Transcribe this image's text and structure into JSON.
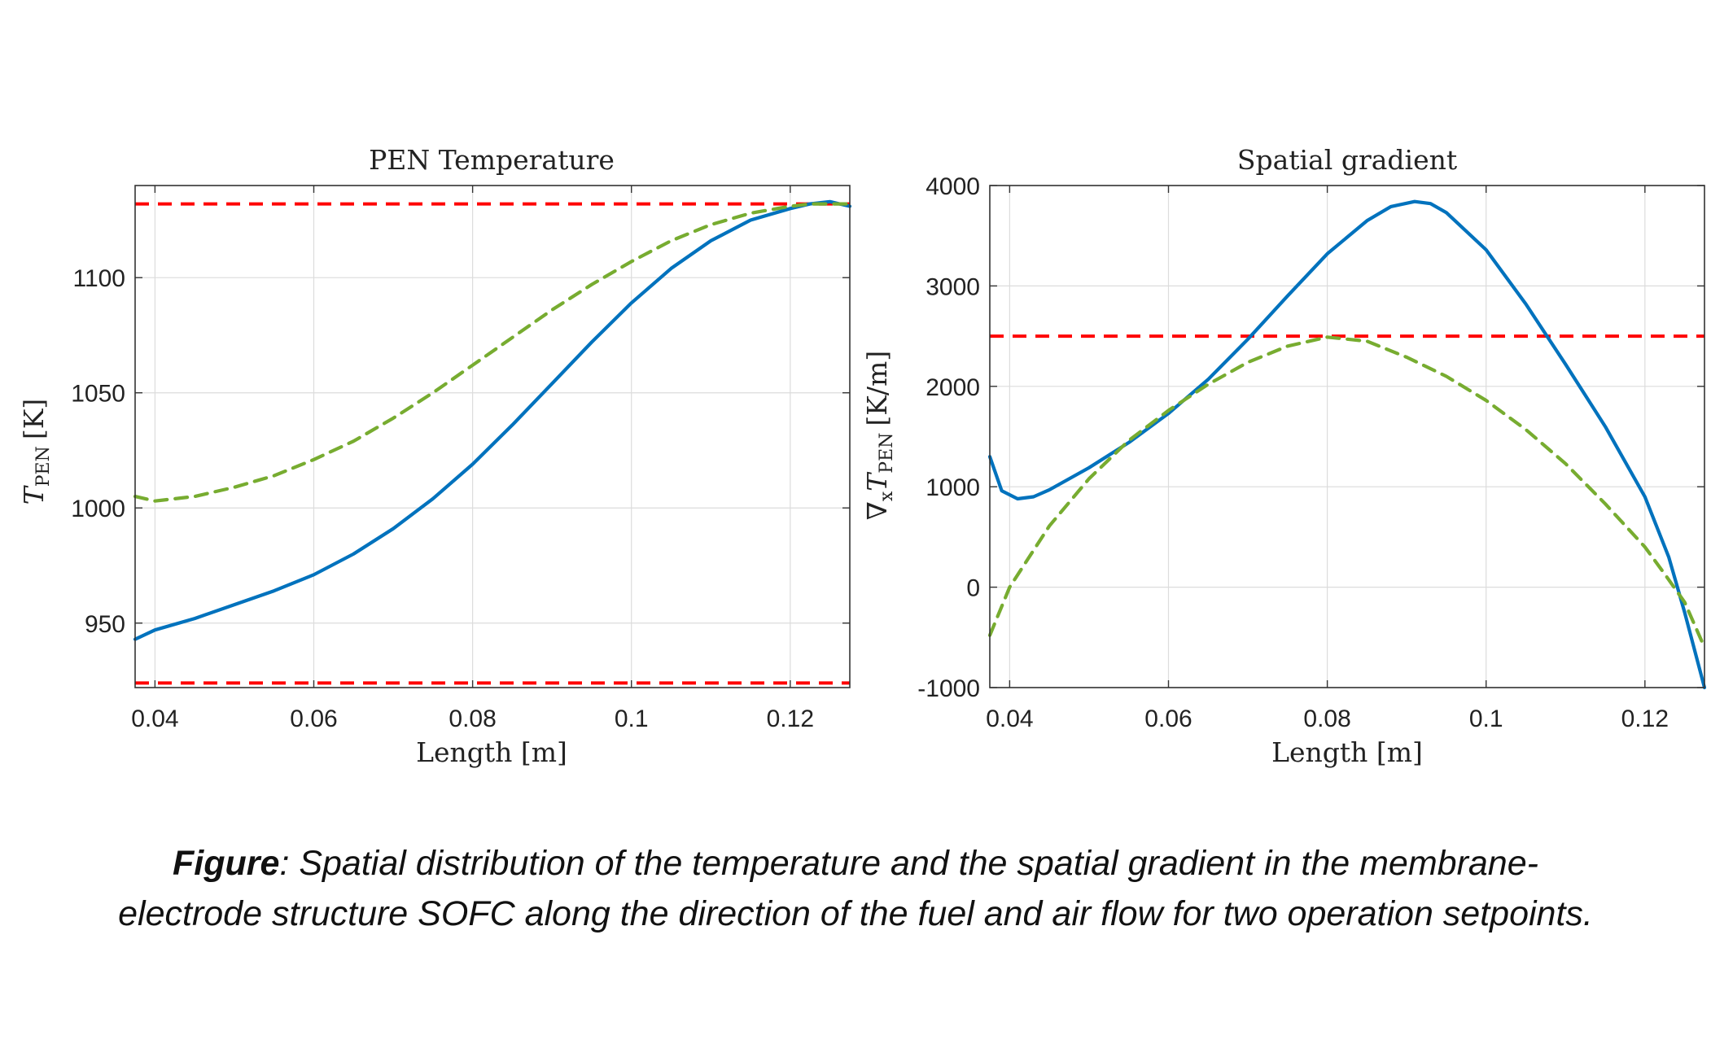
{
  "caption": {
    "lead": "Figure",
    "line1": ": Spatial distribution of the temperature and the spatial gradient in the membrane-",
    "line2": "electrode structure SOFC along the direction of the fuel and air flow for two operation setpoints."
  },
  "colors": {
    "blue": "#0072BD",
    "green": "#77AC30",
    "red": "#FF0000",
    "grid": "#dcdcdc",
    "axis": "#333333"
  },
  "chart_data": [
    {
      "type": "line",
      "title": "PEN Temperature",
      "xlabel": "Length [m]",
      "ylabel_main": "T",
      "ylabel_sub": "PEN",
      "ylabel_unit": "[K]",
      "xlim": [
        0.0375,
        0.1275
      ],
      "ylim": [
        922,
        1140
      ],
      "xticks": [
        0.04,
        0.06,
        0.08,
        0.1,
        0.12
      ],
      "xtick_labels": [
        "0.04",
        "0.06",
        "0.08",
        "0.1",
        "0.12"
      ],
      "yticks": [
        950,
        1000,
        1050,
        1100
      ],
      "ytick_labels": [
        "950",
        "1000",
        "1050",
        "1100"
      ],
      "grid": true,
      "hlines": [
        {
          "y": 1132,
          "color": "#FF0000",
          "style": "dashed"
        },
        {
          "y": 924,
          "color": "#FF0000",
          "style": "dashed"
        }
      ],
      "series": [
        {
          "color": "#0072BD",
          "style": "solid",
          "x": [
            0.0375,
            0.04,
            0.045,
            0.05,
            0.055,
            0.06,
            0.065,
            0.07,
            0.075,
            0.08,
            0.085,
            0.09,
            0.095,
            0.1,
            0.105,
            0.11,
            0.115,
            0.12,
            0.1225,
            0.125,
            0.1275
          ],
          "y": [
            943,
            947,
            952,
            958,
            964,
            971,
            980,
            991,
            1004,
            1019,
            1036,
            1054,
            1072,
            1089,
            1104,
            1116,
            1125,
            1130,
            1132,
            1133,
            1131
          ]
        },
        {
          "color": "#77AC30",
          "style": "dashed",
          "x": [
            0.0375,
            0.04,
            0.045,
            0.05,
            0.055,
            0.06,
            0.065,
            0.07,
            0.075,
            0.08,
            0.085,
            0.09,
            0.095,
            0.1,
            0.105,
            0.11,
            0.115,
            0.12,
            0.1225,
            0.125,
            0.1275
          ],
          "y": [
            1005,
            1003,
            1005,
            1009,
            1014,
            1021,
            1029,
            1039,
            1050,
            1062,
            1074,
            1086,
            1097,
            1107,
            1116,
            1123,
            1128,
            1131,
            1132,
            1132,
            1132
          ]
        }
      ]
    },
    {
      "type": "line",
      "title": "Spatial gradient",
      "xlabel": "Length [m]",
      "ylabel_prefix": "∇",
      "ylabel_prefix_sub": "x",
      "ylabel_main": "T",
      "ylabel_sub": "PEN",
      "ylabel_unit": "[K/m]",
      "xlim": [
        0.0375,
        0.1275
      ],
      "ylim": [
        -1000,
        4000
      ],
      "xticks": [
        0.04,
        0.06,
        0.08,
        0.1,
        0.12
      ],
      "xtick_labels": [
        "0.04",
        "0.06",
        "0.08",
        "0.1",
        "0.12"
      ],
      "yticks": [
        -1000,
        0,
        1000,
        2000,
        3000,
        4000
      ],
      "ytick_labels": [
        "-1000",
        "0",
        "1000",
        "2000",
        "3000",
        "4000"
      ],
      "grid": true,
      "hlines": [
        {
          "y": 2500,
          "color": "#FF0000",
          "style": "dashed"
        }
      ],
      "series": [
        {
          "color": "#0072BD",
          "style": "solid",
          "x": [
            0.0375,
            0.039,
            0.041,
            0.043,
            0.045,
            0.05,
            0.055,
            0.06,
            0.065,
            0.07,
            0.075,
            0.08,
            0.085,
            0.088,
            0.091,
            0.093,
            0.095,
            0.1,
            0.105,
            0.11,
            0.115,
            0.12,
            0.123,
            0.125,
            0.1275
          ],
          "y": [
            1300,
            960,
            880,
            900,
            970,
            1190,
            1440,
            1730,
            2070,
            2470,
            2900,
            3320,
            3650,
            3790,
            3840,
            3820,
            3730,
            3360,
            2820,
            2220,
            1600,
            900,
            300,
            -250,
            -1000
          ]
        },
        {
          "color": "#77AC30",
          "style": "dashed",
          "x": [
            0.0375,
            0.04,
            0.045,
            0.05,
            0.055,
            0.06,
            0.065,
            0.07,
            0.075,
            0.08,
            0.085,
            0.09,
            0.095,
            0.1,
            0.105,
            0.11,
            0.115,
            0.12,
            0.1225,
            0.125,
            0.1275
          ],
          "y": [
            -480,
            0,
            610,
            1080,
            1460,
            1760,
            2020,
            2240,
            2400,
            2490,
            2450,
            2290,
            2100,
            1860,
            1570,
            1230,
            830,
            400,
            130,
            -150,
            -600
          ]
        }
      ]
    }
  ]
}
